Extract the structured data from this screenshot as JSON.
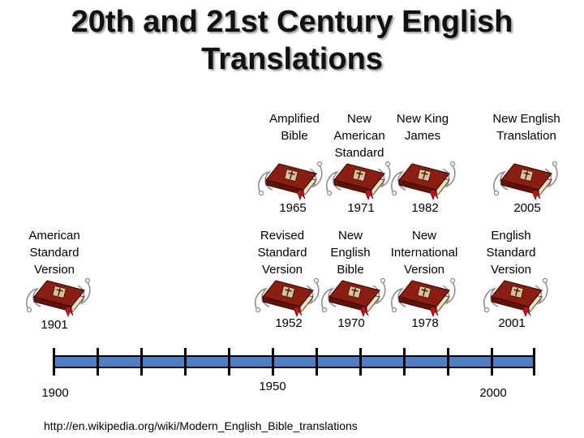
{
  "title": {
    "line1": "20th and 21st Century English",
    "line2": "Translations"
  },
  "translations_top": [
    {
      "name_lines": [
        "Amplified",
        "Bible"
      ],
      "year": "1965"
    },
    {
      "name_lines": [
        "New",
        "American",
        "Standard"
      ],
      "year": "1971"
    },
    {
      "name_lines": [
        "New King",
        "James"
      ],
      "year": "1982"
    },
    {
      "name_lines": [
        "New English",
        "Translation"
      ],
      "year": "2005"
    }
  ],
  "translations_middle": [
    {
      "name_lines": [
        "American",
        "Standard",
        "Version"
      ],
      "year": "1901"
    },
    {
      "name_lines": [
        "Revised",
        "Standard",
        "Version"
      ],
      "year": "1952"
    },
    {
      "name_lines": [
        "New",
        "English",
        "Bible"
      ],
      "year": "1970"
    },
    {
      "name_lines": [
        "New",
        "International",
        "Version"
      ],
      "year": "1978"
    },
    {
      "name_lines": [
        "English",
        "Standard",
        "Version"
      ],
      "year": "2001"
    }
  ],
  "timeline": {
    "start_label": "1900",
    "mid_label": "1950",
    "end_label": "2000",
    "bar_color": "#4f7fc2"
  },
  "icon": "bible-book-icon",
  "source_url": "http://en.wikipedia.org/wiki/Modern_English_Bible_translations"
}
